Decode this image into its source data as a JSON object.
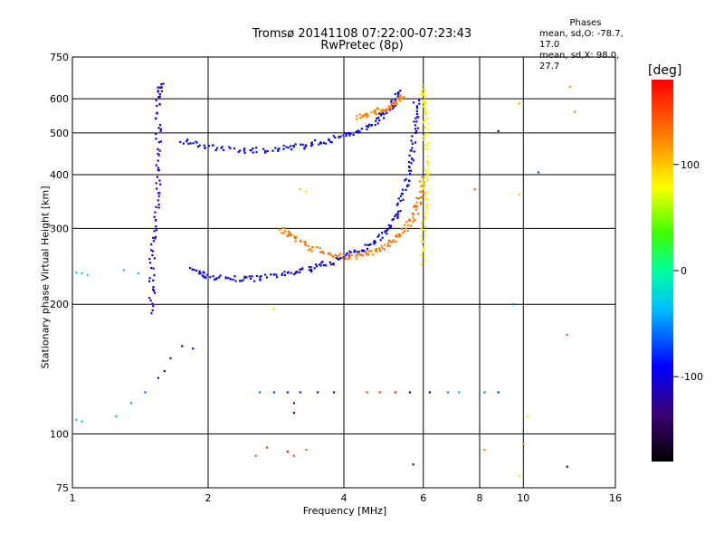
{
  "chart_data": {
    "type": "scatter",
    "title": "Tromsø 20141108 07:22:00-07:23:43",
    "subtitle": "RwPretec (8p)",
    "xlabel": "Frequency [MHz]",
    "ylabel": "Stationary phase Virtual Height [km]",
    "x_scale": "log",
    "y_scale": "log",
    "xlim": [
      1,
      16
    ],
    "ylim": [
      75,
      750
    ],
    "x_ticks": [
      "1",
      "2",
      "4",
      "6",
      "8",
      "10",
      "16"
    ],
    "x_tick_values": [
      1,
      2,
      4,
      6,
      8,
      10,
      16
    ],
    "y_ticks": [
      "75",
      "100",
      "200",
      "300",
      "400",
      "500",
      "600",
      "750"
    ],
    "y_tick_values": [
      75,
      100,
      200,
      300,
      400,
      500,
      600,
      750
    ],
    "grid": true,
    "stats_header": "Phases",
    "stats_line1": "mean, sd,O:  -78.7, 17.0",
    "stats_line2": "mean, sd,X:   98.0, 27.7",
    "colorbar": {
      "label": "[deg]",
      "range": [
        -180,
        180
      ],
      "ticks": [
        "100",
        "0",
        "-100"
      ],
      "tick_values": [
        100,
        0,
        -100
      ]
    },
    "traces": [
      {
        "name": "o-lower",
        "phase": -95,
        "points": [
          [
            1.85,
            240
          ],
          [
            2.0,
            232
          ],
          [
            2.3,
            229
          ],
          [
            2.6,
            230
          ],
          [
            3.0,
            235
          ],
          [
            3.4,
            243
          ],
          [
            3.8,
            252
          ],
          [
            4.2,
            263
          ],
          [
            4.6,
            277
          ],
          [
            5.0,
            298
          ],
          [
            5.3,
            330
          ],
          [
            5.5,
            380
          ],
          [
            5.65,
            440
          ],
          [
            5.75,
            520
          ],
          [
            5.8,
            600
          ]
        ]
      },
      {
        "name": "o-upper",
        "phase": -90,
        "points": [
          [
            1.75,
            480
          ],
          [
            2.0,
            463
          ],
          [
            2.4,
            455
          ],
          [
            2.8,
            458
          ],
          [
            3.2,
            465
          ],
          [
            3.6,
            478
          ],
          [
            4.0,
            492
          ],
          [
            4.4,
            510
          ],
          [
            4.8,
            540
          ],
          [
            5.1,
            580
          ],
          [
            5.3,
            630
          ]
        ]
      },
      {
        "name": "x-lower",
        "phase": 130,
        "points": [
          [
            2.9,
            300
          ],
          [
            3.1,
            285
          ],
          [
            3.4,
            270
          ],
          [
            3.8,
            260
          ],
          [
            4.2,
            258
          ],
          [
            4.6,
            264
          ],
          [
            5.0,
            276
          ],
          [
            5.4,
            294
          ],
          [
            5.7,
            320
          ],
          [
            5.9,
            350
          ],
          [
            6.0,
            400
          ]
        ]
      },
      {
        "name": "x-upper",
        "phase": 125,
        "points": [
          [
            4.3,
            545
          ],
          [
            4.6,
            555
          ],
          [
            4.9,
            568
          ],
          [
            5.2,
            585
          ],
          [
            5.4,
            610
          ]
        ]
      },
      {
        "name": "x-cusp",
        "phase": 80,
        "points": [
          [
            5.95,
            250
          ],
          [
            6.0,
            300
          ],
          [
            6.05,
            360
          ],
          [
            6.08,
            420
          ],
          [
            6.08,
            500
          ],
          [
            6.05,
            580
          ],
          [
            5.95,
            640
          ]
        ]
      },
      {
        "name": "vertical-band",
        "phase": -105,
        "points": [
          [
            1.5,
            190
          ],
          [
            1.5,
            240
          ],
          [
            1.52,
            300
          ],
          [
            1.55,
            380
          ],
          [
            1.55,
            480
          ],
          [
            1.55,
            600
          ],
          [
            1.58,
            650
          ]
        ]
      }
    ],
    "scatter_points": [
      [
        1.02,
        237,
        -20
      ],
      [
        1.05,
        236,
        -25
      ],
      [
        1.08,
        234,
        -20
      ],
      [
        1.3,
        240,
        -40
      ],
      [
        1.4,
        236,
        -35
      ],
      [
        1.02,
        108,
        -30
      ],
      [
        1.05,
        107,
        -25
      ],
      [
        1.25,
        110,
        -40
      ],
      [
        1.35,
        118,
        -50
      ],
      [
        1.45,
        125,
        -60
      ],
      [
        1.55,
        135,
        -120
      ],
      [
        1.6,
        140,
        -115
      ],
      [
        1.65,
        150,
        -110
      ],
      [
        1.75,
        160,
        -95
      ],
      [
        1.85,
        158,
        -95
      ],
      [
        2.55,
        89,
        150
      ],
      [
        2.7,
        93,
        160
      ],
      [
        3.0,
        91,
        170
      ],
      [
        3.1,
        89,
        150
      ],
      [
        3.3,
        92,
        140
      ],
      [
        2.6,
        125,
        -60
      ],
      [
        2.8,
        125,
        -70
      ],
      [
        3.0,
        125,
        -80
      ],
      [
        3.2,
        125,
        -100
      ],
      [
        3.5,
        125,
        -110
      ],
      [
        3.8,
        125,
        -110
      ],
      [
        4.5,
        125,
        150
      ],
      [
        4.8,
        125,
        160
      ],
      [
        5.2,
        125,
        170
      ],
      [
        5.6,
        125,
        -110
      ],
      [
        6.2,
        125,
        -110
      ],
      [
        6.8,
        125,
        -50
      ],
      [
        7.2,
        125,
        -40
      ],
      [
        8.2,
        125,
        -60
      ],
      [
        8.8,
        125,
        -80
      ],
      [
        3.1,
        118,
        -110
      ],
      [
        3.1,
        112,
        -110
      ],
      [
        3.2,
        370,
        100
      ],
      [
        3.3,
        365,
        90
      ],
      [
        2.8,
        195,
        70
      ],
      [
        7.8,
        370,
        140
      ],
      [
        8.8,
        505,
        -120
      ],
      [
        9.8,
        360,
        100
      ],
      [
        9.8,
        585,
        110
      ],
      [
        10.8,
        405,
        -70
      ],
      [
        12.5,
        170,
        140
      ],
      [
        12.5,
        84,
        -120
      ],
      [
        12.7,
        640,
        120
      ],
      [
        13.0,
        560,
        130
      ],
      [
        9.5,
        200,
        -60
      ],
      [
        10.0,
        95,
        120
      ],
      [
        10.2,
        110,
        70
      ],
      [
        9.8,
        80,
        70
      ],
      [
        8.2,
        92,
        130
      ],
      [
        5.7,
        85,
        -120
      ]
    ]
  }
}
